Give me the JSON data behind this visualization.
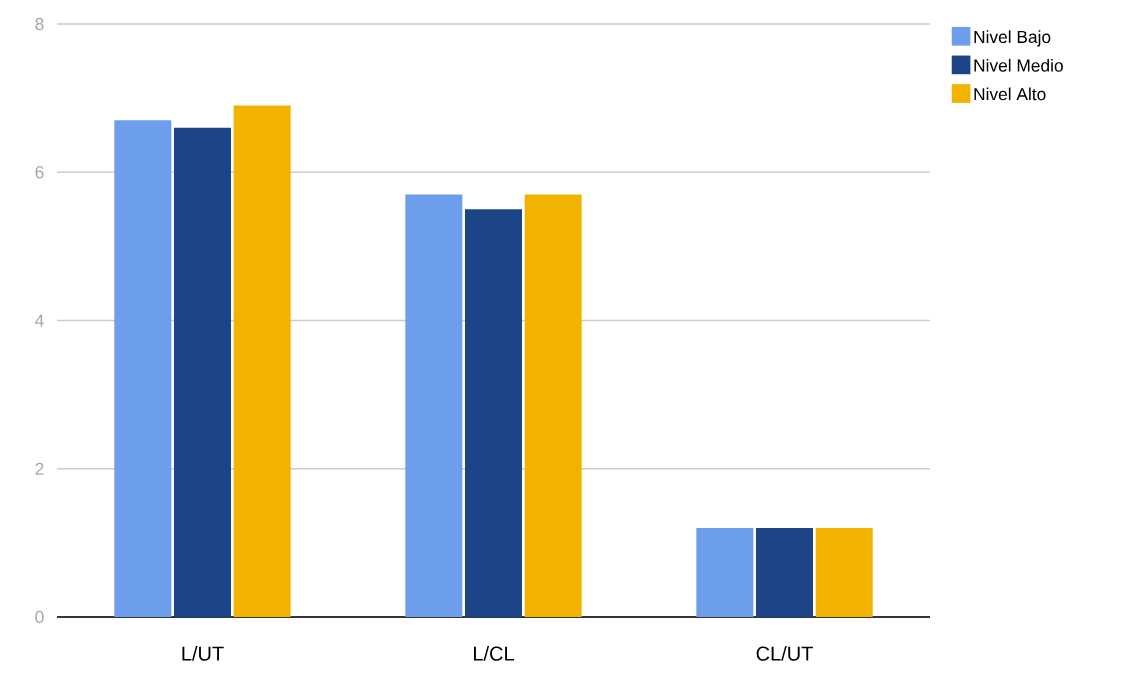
{
  "chart_data": {
    "type": "bar",
    "categories": [
      "L/UT",
      "L/CL",
      "CL/UT"
    ],
    "series": [
      {
        "name": "Nivel Bajo",
        "color": "#6d9eeb",
        "values": [
          6.7,
          5.7,
          1.2
        ]
      },
      {
        "name": "Nivel Medio",
        "color": "#1c4587",
        "values": [
          6.6,
          5.5,
          1.2
        ]
      },
      {
        "name": "Nivel Alto",
        "color": "#f1b300",
        "values": [
          6.9,
          5.7,
          1.2
        ]
      }
    ],
    "ylim": [
      0,
      8
    ],
    "yticks": [
      0,
      2,
      4,
      6,
      8
    ],
    "grid": "y",
    "legend": "top right"
  }
}
